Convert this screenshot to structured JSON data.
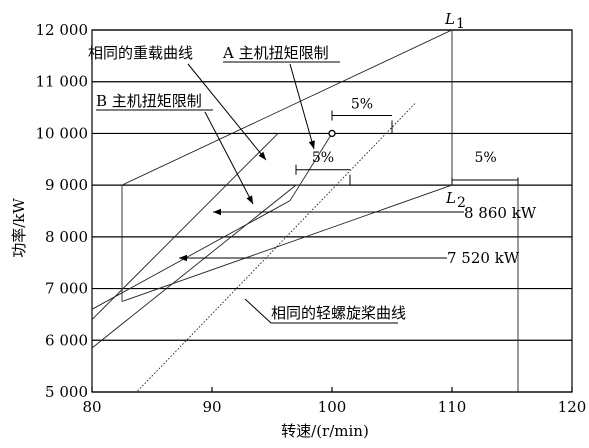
{
  "chart_data": {
    "type": "line",
    "xlabel": "转速/(r/min)",
    "ylabel": "功率/kW",
    "xlim": [
      80,
      120
    ],
    "ylim": [
      5000,
      12000
    ],
    "x_ticks": [
      "80",
      "90",
      "100",
      "110",
      "120"
    ],
    "y_ticks": [
      "5 000",
      "6 000",
      "7 000",
      "8 000",
      "9 000",
      "10 000",
      "11 000",
      "12 000"
    ],
    "grid": "horizontal",
    "series": [
      {
        "name": "",
        "style": "solid",
        "points": [
          [
            82.5,
            6750
          ],
          [
            110,
            9000
          ]
        ]
      },
      {
        "name": "",
        "style": "solid",
        "points": [
          [
            80,
            6600
          ],
          [
            96.5,
            8700
          ],
          [
            100,
            10000
          ]
        ]
      },
      {
        "name": "",
        "style": "solid",
        "points": [
          [
            80,
            6400
          ],
          [
            95.5,
            10000
          ]
        ]
      },
      {
        "name": "",
        "style": "solid",
        "points": [
          [
            80,
            5850
          ],
          [
            97,
            9000
          ],
          [
            101.5,
            9000
          ]
        ]
      },
      {
        "name": "",
        "style": "solid",
        "points": [
          [
            82.5,
            9000
          ],
          [
            82.5,
            6750
          ]
        ]
      },
      {
        "name": "",
        "style": "solid",
        "points": [
          [
            82.5,
            9000
          ],
          [
            110,
            12000
          ],
          [
            110,
            9000
          ]
        ]
      },
      {
        "name": "",
        "style": "solid",
        "points": [
          [
            115.5,
            5000
          ],
          [
            115.5,
            9000
          ]
        ]
      },
      {
        "name": "",
        "style": "dotted",
        "points": [
          [
            83.8,
            5020
          ],
          [
            107,
            10600
          ]
        ]
      }
    ],
    "markers": [
      {
        "x": 100,
        "y": 10000,
        "shape": "open-circle"
      }
    ],
    "annotations": {
      "L1": "L",
      "L1_sub": "1",
      "L2": "L",
      "L2_sub": "2",
      "pct_top": "5%",
      "pct_mid": "5%",
      "pct_right": "5%",
      "same_heavy_curve": "相同的重载曲线",
      "a_limit": "A 主机扭矩限制",
      "b_limit": "B 主机扭矩限制",
      "power_8860": "8 860 kW",
      "power_7520": "7 520 kW",
      "same_light_curve": "相同的轻螺旋桨曲线"
    }
  }
}
